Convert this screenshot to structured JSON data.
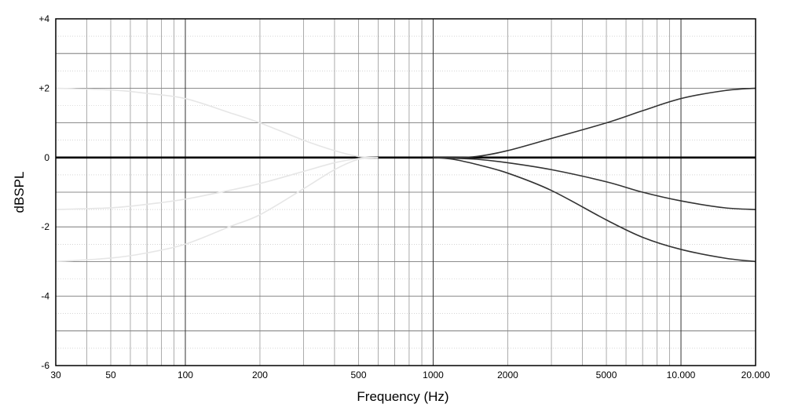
{
  "chart_data": {
    "type": "line",
    "xlabel": "Frequency (Hz)",
    "ylabel": "dBSPL",
    "xscale": "log",
    "xlim": [
      30,
      20000
    ],
    "ylim": [
      -6,
      4
    ],
    "grid": true,
    "x_ticks": [
      {
        "value": 30,
        "label": "30"
      },
      {
        "value": 50,
        "label": "50"
      },
      {
        "value": 100,
        "label": "100"
      },
      {
        "value": 200,
        "label": "200"
      },
      {
        "value": 500,
        "label": "500"
      },
      {
        "value": 1000,
        "label": "1000"
      },
      {
        "value": 2000,
        "label": "2000"
      },
      {
        "value": 5000,
        "label": "5000"
      },
      {
        "value": 10000,
        "label": "10.000"
      },
      {
        "value": 20000,
        "label": "20.000"
      }
    ],
    "y_ticks": [
      {
        "value": 4,
        "label": "+4"
      },
      {
        "value": 2,
        "label": "+2"
      },
      {
        "value": 0,
        "label": "0"
      },
      {
        "value": -2,
        "label": "-2"
      },
      {
        "value": -4,
        "label": "-4"
      },
      {
        "value": -6,
        "label": "-6"
      }
    ],
    "series": [
      {
        "style": "flat",
        "color": "#000000",
        "x": [
          30,
          20000
        ],
        "y": [
          0,
          0
        ]
      },
      {
        "style": "treble-boost",
        "color": "#333333",
        "x": [
          1000,
          1200,
          1500,
          2000,
          3000,
          5000,
          7000,
          10000,
          15000,
          20000
        ],
        "y": [
          0,
          0,
          0.03,
          0.2,
          0.55,
          1.0,
          1.35,
          1.7,
          1.93,
          2.0
        ]
      },
      {
        "style": "treble-cut-1.5",
        "color": "#333333",
        "x": [
          1000,
          1200,
          1500,
          2000,
          3000,
          5000,
          7000,
          10000,
          15000,
          20000
        ],
        "y": [
          0,
          -0.02,
          -0.05,
          -0.15,
          -0.35,
          -0.7,
          -1.0,
          -1.25,
          -1.45,
          -1.5
        ]
      },
      {
        "style": "treble-cut-3",
        "color": "#333333",
        "x": [
          1000,
          1200,
          1500,
          2000,
          3000,
          5000,
          7000,
          10000,
          15000,
          20000
        ],
        "y": [
          0,
          -0.05,
          -0.2,
          -0.45,
          -0.95,
          -1.8,
          -2.3,
          -2.65,
          -2.9,
          -3.0
        ]
      },
      {
        "style": "bass-boost-faint",
        "color": "#e6e6e6",
        "x": [
          30,
          50,
          70,
          100,
          150,
          200,
          300,
          400,
          500,
          600
        ],
        "y": [
          2.0,
          1.95,
          1.85,
          1.7,
          1.3,
          1.0,
          0.5,
          0.2,
          0.03,
          0
        ]
      },
      {
        "style": "bass-cut-1.5-faint",
        "color": "#e6e6e6",
        "x": [
          30,
          50,
          70,
          100,
          150,
          200,
          300,
          400,
          500,
          600
        ],
        "y": [
          -1.5,
          -1.45,
          -1.35,
          -1.2,
          -0.95,
          -0.75,
          -0.4,
          -0.15,
          -0.03,
          0
        ]
      },
      {
        "style": "bass-cut-3-faint",
        "color": "#e6e6e6",
        "x": [
          30,
          50,
          70,
          100,
          150,
          200,
          300,
          400,
          500,
          600
        ],
        "y": [
          -3.0,
          -2.9,
          -2.75,
          -2.5,
          -2.0,
          -1.65,
          -0.9,
          -0.35,
          -0.05,
          0
        ]
      }
    ]
  }
}
